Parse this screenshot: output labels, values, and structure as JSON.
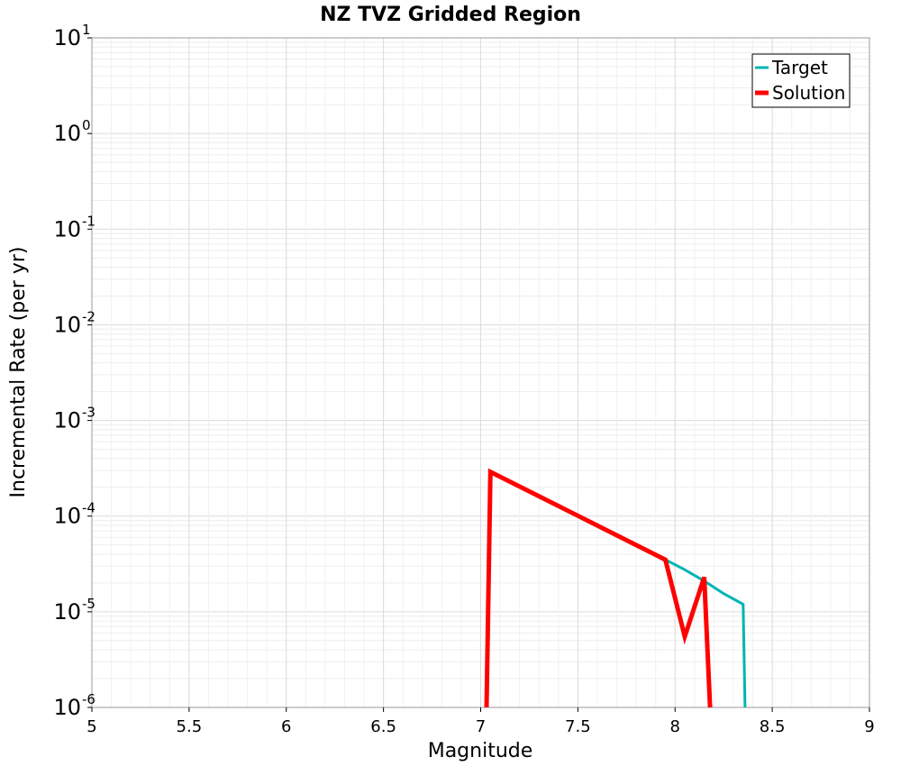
{
  "chart_data": {
    "type": "line",
    "title": "NZ TVZ Gridded Region",
    "xlabel": "Magnitude",
    "ylabel": "Incremental Rate (per yr)",
    "xlim": [
      5,
      9
    ],
    "ylim": [
      1e-06,
      10
    ],
    "yscale": "log",
    "grid": true,
    "legend_position": "top-right",
    "xticks": [
      "5",
      "5.5",
      "6",
      "6.5",
      "7",
      "7.5",
      "8",
      "8.5",
      "9"
    ],
    "yticks": [
      {
        "base": "10",
        "exp": "-6"
      },
      {
        "base": "10",
        "exp": "-5"
      },
      {
        "base": "10",
        "exp": "-4"
      },
      {
        "base": "10",
        "exp": "-3"
      },
      {
        "base": "10",
        "exp": "-2"
      },
      {
        "base": "10",
        "exp": "-1"
      },
      {
        "base": "10",
        "exp": "0"
      },
      {
        "base": "10",
        "exp": "1"
      }
    ],
    "series": [
      {
        "name": "Target",
        "color": "#00b4b4",
        "x": [
          7.95,
          8.05,
          8.15,
          8.25,
          8.35,
          8.36
        ],
        "y": [
          3.5e-05,
          2.75e-05,
          2.1e-05,
          1.55e-05,
          1.2e-05,
          1e-06
        ]
      },
      {
        "name": "Solution",
        "color": "#ff0000",
        "x": [
          7.03,
          7.05,
          7.95,
          8.05,
          8.15,
          8.18
        ],
        "y": [
          1e-06,
          0.00029,
          3.5e-05,
          5.5e-06,
          2.3e-05,
          1e-06
        ]
      }
    ]
  }
}
